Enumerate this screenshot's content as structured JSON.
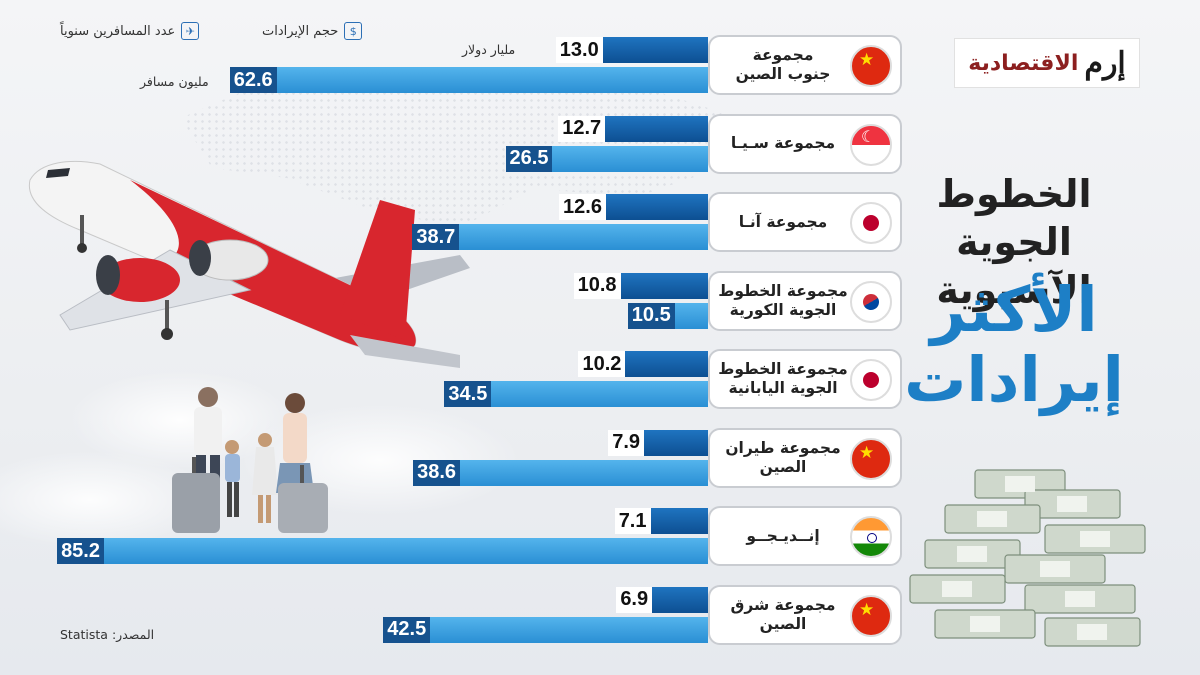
{
  "logo": {
    "mark": "إرم",
    "sub": "الاقتصادية"
  },
  "title": {
    "line1": "الخطوط الجوية",
    "line2": "الآسيوية",
    "line3": "الأكثر",
    "line4": "إيرادات"
  },
  "legend": {
    "revenue": "حجم الإيرادات",
    "passengers": "عدد المسافرين سنوياً"
  },
  "units": {
    "revenue": "مليار دولار",
    "passengers": "مليون مسافر"
  },
  "source": {
    "label": "المصدر:",
    "value": "Statista"
  },
  "colors": {
    "revenue": "#0d4f92",
    "passengers": "#2a8fd4",
    "title_accent": "#1d7fc6"
  },
  "chart_data": {
    "type": "bar",
    "orientation": "horizontal",
    "categories": [
      "مجموعة جنوب الصين",
      "مجموعة سيا",
      "مجموعة آنا",
      "مجموعة الخطوط الجوية الكورية",
      "مجموعة الخطوط الجوية اليابانية",
      "مجموعة طيران الصين",
      "إنديجو",
      "مجموعة شرق الصين"
    ],
    "category_lines": [
      [
        "مجموعة",
        "جنوب الصين"
      ],
      [
        "مجموعة سـيـا"
      ],
      [
        "مجموعة آنـا"
      ],
      [
        "مجموعة الخطوط",
        "الجوية الكورية"
      ],
      [
        "مجموعة الخطوط",
        "الجوية اليابانية"
      ],
      [
        "مجموعة طيران",
        "الصين"
      ],
      [
        "إنــديـجــو"
      ],
      [
        "مجموعة شرق",
        "الصين"
      ]
    ],
    "flags": [
      "cn",
      "sg",
      "jp",
      "kr",
      "jp",
      "cn",
      "in",
      "cn"
    ],
    "value_labels": {
      "revenue": [
        "13.0",
        "12.7",
        "12.6",
        "10.8",
        "10.2",
        "7.9",
        "7.1",
        "6.9"
      ],
      "passengers": [
        "62.6",
        "26.5",
        "38.7",
        "10.5",
        "34.5",
        "38.6",
        "85.2",
        "42.5"
      ]
    },
    "series": [
      {
        "name": "حجم الإيرادات",
        "values": [
          13.0,
          12.7,
          12.6,
          10.8,
          10.2,
          7.9,
          7.1,
          6.9
        ]
      },
      {
        "name": "عدد المسافرين سنوياً",
        "values": [
          62.6,
          26.5,
          38.7,
          10.5,
          34.5,
          38.6,
          85.2,
          42.5
        ]
      }
    ],
    "grid": false,
    "legend_position": "top-left"
  }
}
